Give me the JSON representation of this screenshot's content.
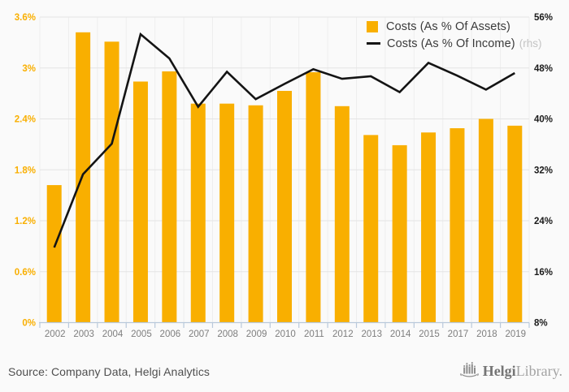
{
  "chart_data": {
    "type": "bar",
    "title": "",
    "categories": [
      "2002",
      "2003",
      "2004",
      "2005",
      "2006",
      "2007",
      "2008",
      "2009",
      "2010",
      "2011",
      "2012",
      "2013",
      "2014",
      "2015",
      "2017",
      "2018",
      "2019"
    ],
    "series": [
      {
        "name": "Costs (As % Of Assets)",
        "type": "bar",
        "axis": "left",
        "color": "#F9AF00",
        "values": [
          1.62,
          3.42,
          3.31,
          2.84,
          2.96,
          2.58,
          2.58,
          2.56,
          2.73,
          2.95,
          2.55,
          2.21,
          2.09,
          2.24,
          2.29,
          2.4,
          2.32
        ]
      },
      {
        "name": "Costs (As % Of Income)",
        "suffix": "(rhs)",
        "type": "line",
        "axis": "right",
        "color": "#141414",
        "values": [
          19.8,
          31.3,
          36.1,
          53.3,
          49.5,
          41.9,
          47.4,
          43.1,
          45.5,
          47.8,
          46.3,
          46.7,
          44.2,
          48.8,
          46.8,
          44.6,
          47.2
        ]
      }
    ],
    "left_axis": {
      "tick_labels": [
        "3.6%",
        "3%",
        "2.4%",
        "1.8%",
        "1.2%",
        "0.6%",
        "0%"
      ],
      "min": 0,
      "max": 3.6,
      "step": 0.6,
      "color": "#F9AF00"
    },
    "right_axis": {
      "tick_labels": [
        "56%",
        "48%",
        "40%",
        "32%",
        "24%",
        "16%",
        "8%"
      ],
      "min": 8,
      "max": 56,
      "step": 8,
      "color": "#1a1a1a"
    },
    "x_axis": {
      "label_color": "#7e7e7e",
      "line_color": "#b9c9db"
    },
    "grid": {
      "horizontal_color": "#e4e4e4",
      "vertical_color": "#eeeeee"
    },
    "legend_position": "top-right",
    "background": "#fafafa"
  },
  "footer": {
    "source": "Source: Company Data, Helgi Analytics",
    "logo_bold": "Helgi",
    "logo_light": "Library."
  }
}
